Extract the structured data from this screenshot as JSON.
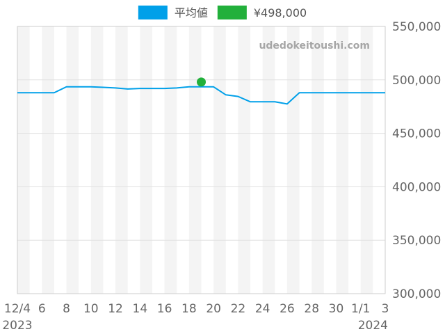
{
  "chart_data": {
    "type": "line",
    "watermark": "udedokeitoushi.com",
    "x_tick_labels": [
      "12/4",
      "6",
      "8",
      "10",
      "12",
      "14",
      "16",
      "18",
      "20",
      "22",
      "24",
      "26",
      "28",
      "30",
      "1/1",
      "3"
    ],
    "x_year_labels": {
      "start": "2023",
      "end": "2024"
    },
    "x_range": [
      "2023-12-04",
      "2024-01-03"
    ],
    "y_range": [
      300000,
      550000
    ],
    "y_tick_values": [
      300000,
      350000,
      400000,
      450000,
      500000,
      550000
    ],
    "y_tick_labels": [
      "300,000",
      "350,000",
      "400,000",
      "450,000",
      "500,000",
      "550,000"
    ],
    "y_axis_side": "right",
    "legend_position": "top-center",
    "alternating_day_bands": true,
    "series": [
      {
        "name": "平均値",
        "kind": "line",
        "color": "#00a0e9",
        "points": [
          {
            "x": "2023-12-04",
            "y": 488000
          },
          {
            "x": "2023-12-05",
            "y": 488000
          },
          {
            "x": "2023-12-06",
            "y": 488000
          },
          {
            "x": "2023-12-07",
            "y": 488000
          },
          {
            "x": "2023-12-08",
            "y": 493500
          },
          {
            "x": "2023-12-09",
            "y": 493500
          },
          {
            "x": "2023-12-10",
            "y": 493500
          },
          {
            "x": "2023-12-11",
            "y": 493000
          },
          {
            "x": "2023-12-12",
            "y": 492500
          },
          {
            "x": "2023-12-13",
            "y": 491500
          },
          {
            "x": "2023-12-14",
            "y": 492000
          },
          {
            "x": "2023-12-15",
            "y": 492000
          },
          {
            "x": "2023-12-16",
            "y": 492000
          },
          {
            "x": "2023-12-17",
            "y": 492500
          },
          {
            "x": "2023-12-18",
            "y": 493500
          },
          {
            "x": "2023-12-19",
            "y": 493500
          },
          {
            "x": "2023-12-20",
            "y": 493500
          },
          {
            "x": "2023-12-21",
            "y": 486000
          },
          {
            "x": "2023-12-22",
            "y": 484500
          },
          {
            "x": "2023-12-23",
            "y": 479500
          },
          {
            "x": "2023-12-24",
            "y": 479500
          },
          {
            "x": "2023-12-25",
            "y": 479500
          },
          {
            "x": "2023-12-26",
            "y": 477500
          },
          {
            "x": "2023-12-27",
            "y": 488000
          },
          {
            "x": "2023-12-28",
            "y": 488000
          },
          {
            "x": "2023-12-29",
            "y": 488000
          },
          {
            "x": "2023-12-30",
            "y": 488000
          },
          {
            "x": "2023-12-31",
            "y": 488000
          },
          {
            "x": "2024-01-01",
            "y": 488000
          },
          {
            "x": "2024-01-02",
            "y": 488000
          },
          {
            "x": "2024-01-03",
            "y": 488000
          }
        ]
      },
      {
        "name": "¥498,000",
        "kind": "scatter",
        "color": "#22b03b",
        "points": [
          {
            "x": "2023-12-19",
            "y": 498000
          }
        ]
      }
    ]
  }
}
